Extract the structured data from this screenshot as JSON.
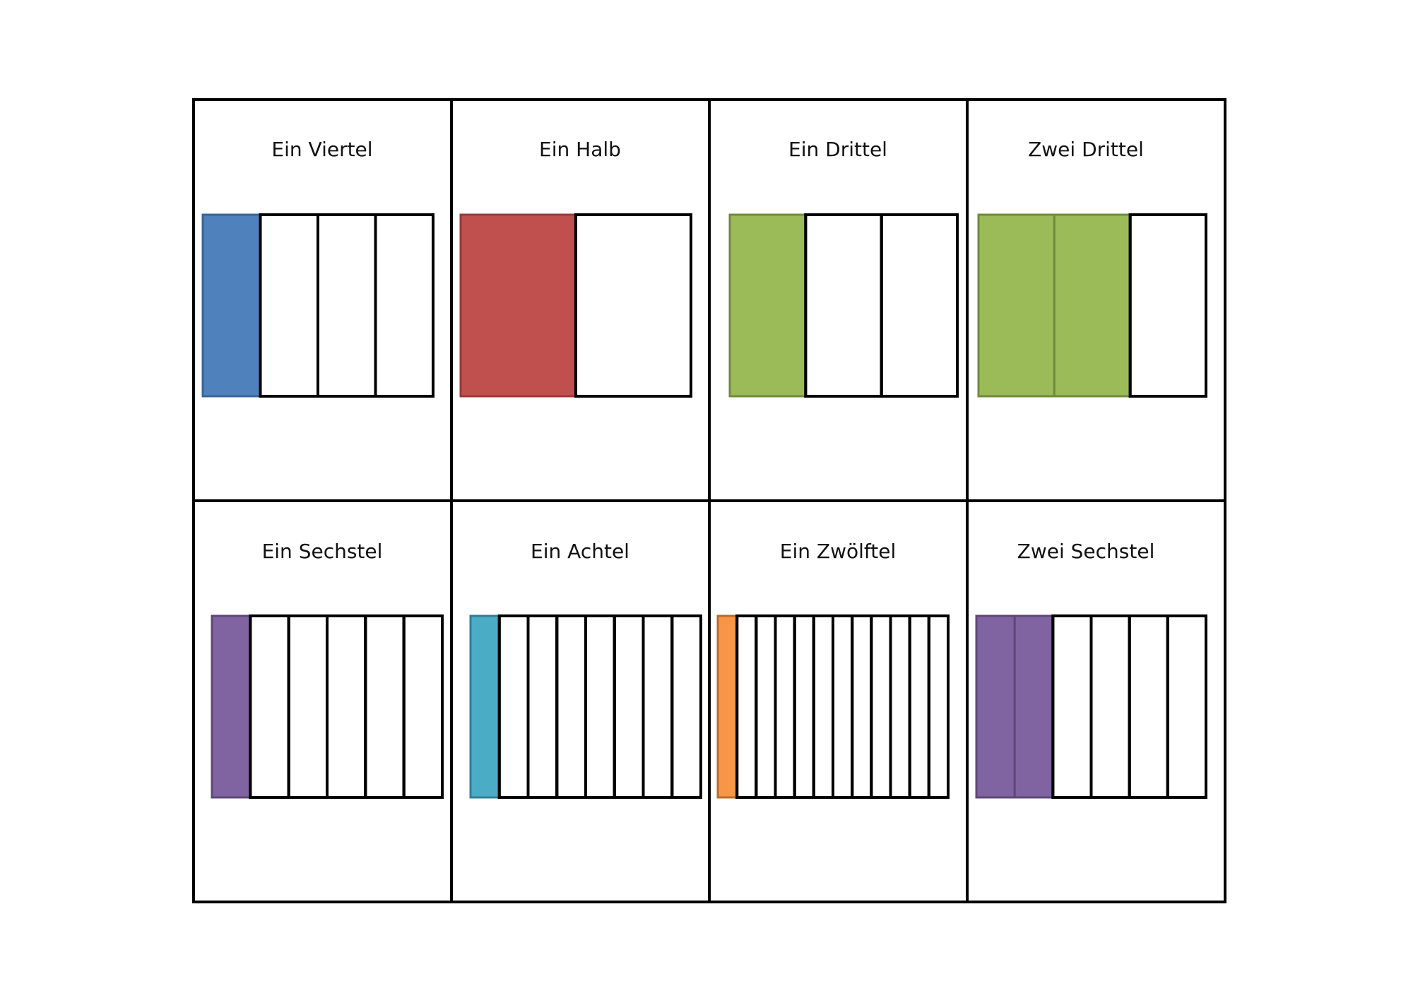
{
  "cards": [
    {
      "title": "Ein Viertel",
      "parts": 4,
      "shaded": 1,
      "fill": "#4f81bd",
      "stroke": "#3a6594"
    },
    {
      "title": "Ein Halb",
      "parts": 2,
      "shaded": 1,
      "fill": "#c0504d",
      "stroke": "#923c3a"
    },
    {
      "title": "Ein Drittel",
      "parts": 3,
      "shaded": 1,
      "fill": "#9bbb59",
      "stroke": "#6f8a3e"
    },
    {
      "title": "Zwei Drittel",
      "parts": 3,
      "shaded": 2,
      "fill": "#9bbb59",
      "stroke": "#6f8a3e"
    },
    {
      "title": "Ein Sechstel",
      "parts": 6,
      "shaded": 1,
      "fill": "#8064a2",
      "stroke": "#5e4878"
    },
    {
      "title": "Ein Achtel",
      "parts": 8,
      "shaded": 1,
      "fill": "#4bacc6",
      "stroke": "#317f94"
    },
    {
      "title": "Ein Zwölftel",
      "parts": 12,
      "shaded": 1,
      "fill": "#f79646",
      "stroke": "#b86c2c"
    },
    {
      "title": "Zwei Sechstel",
      "parts": 6,
      "shaded": 2,
      "fill": "#8064a2",
      "stroke": "#5e4878"
    }
  ]
}
